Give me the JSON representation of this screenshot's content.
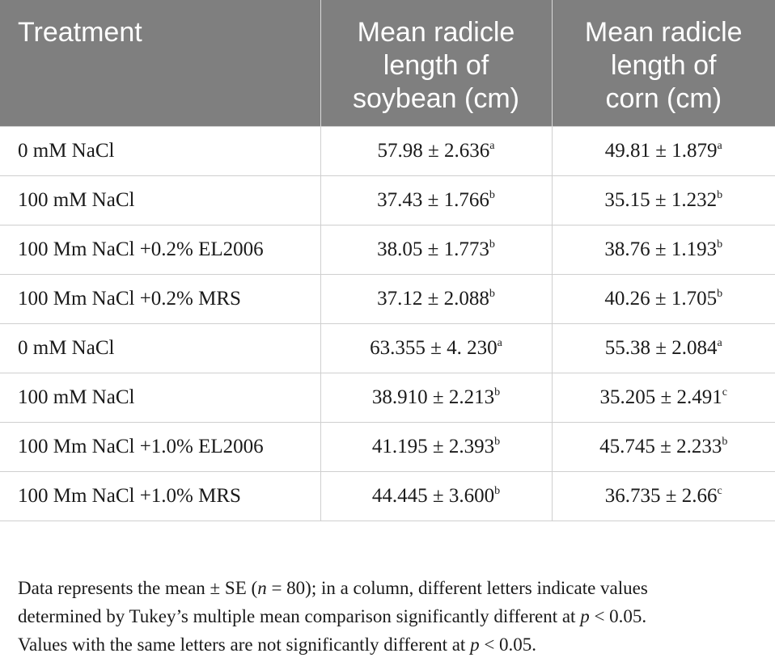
{
  "table": {
    "headers": [
      "Treatment",
      "Mean radicle length of soybean (cm)",
      "Mean radicle length of corn (cm)"
    ],
    "header_lines": [
      [
        "Treatment"
      ],
      [
        "Mean radicle",
        "length of",
        "soybean (cm)"
      ],
      [
        "Mean radicle",
        "length of",
        "corn (cm)"
      ]
    ],
    "rows": [
      {
        "treatment": "0 mM NaCl",
        "soybean": "57.98 ± 2.636",
        "soybean_sup": "a",
        "corn": "49.81 ± 1.879",
        "corn_sup": "a"
      },
      {
        "treatment": "100 mM NaCl",
        "soybean": "37.43 ± 1.766",
        "soybean_sup": "b",
        "corn": "35.15 ± 1.232",
        "corn_sup": "b"
      },
      {
        "treatment": "100 Mm NaCl +0.2% EL2006",
        "soybean": "38.05 ± 1.773",
        "soybean_sup": "b",
        "corn": "38.76 ± 1.193",
        "corn_sup": "b"
      },
      {
        "treatment": "100 Mm NaCl +0.2% MRS",
        "soybean": "37.12 ± 2.088",
        "soybean_sup": "b",
        "corn": "40.26 ± 1.705",
        "corn_sup": "b"
      },
      {
        "treatment": "0 mM NaCl",
        "soybean": "63.355 ± 4. 230",
        "soybean_sup": "a",
        "corn": "55.38 ± 2.084",
        "corn_sup": "a"
      },
      {
        "treatment": "100 mM NaCl",
        "soybean": "38.910 ± 2.213",
        "soybean_sup": "b",
        "corn": "35.205 ± 2.491",
        "corn_sup": "c"
      },
      {
        "treatment": "100 Mm NaCl +1.0% EL2006",
        "soybean": "41.195 ± 2.393",
        "soybean_sup": "b",
        "corn": "45.745 ± 2.233",
        "corn_sup": "b"
      },
      {
        "treatment": "100 Mm NaCl +1.0% MRS",
        "soybean": "44.445 ± 3.600",
        "soybean_sup": "b",
        "corn": "36.735 ± 2.66",
        "corn_sup": "c"
      }
    ]
  },
  "footnote": {
    "line1_a": "Data represents the mean ± SE (",
    "line1_n": "n",
    "line1_b": " = 80); in a column, different letters indicate values",
    "line2_a": "determined by Tukey’s multiple mean comparison significantly different at ",
    "line2_p": "p",
    "line2_b": " < 0.05.",
    "line3_a": "Values with the same letters are not significantly different at ",
    "line3_p": "p",
    "line3_b": " < 0.05."
  }
}
